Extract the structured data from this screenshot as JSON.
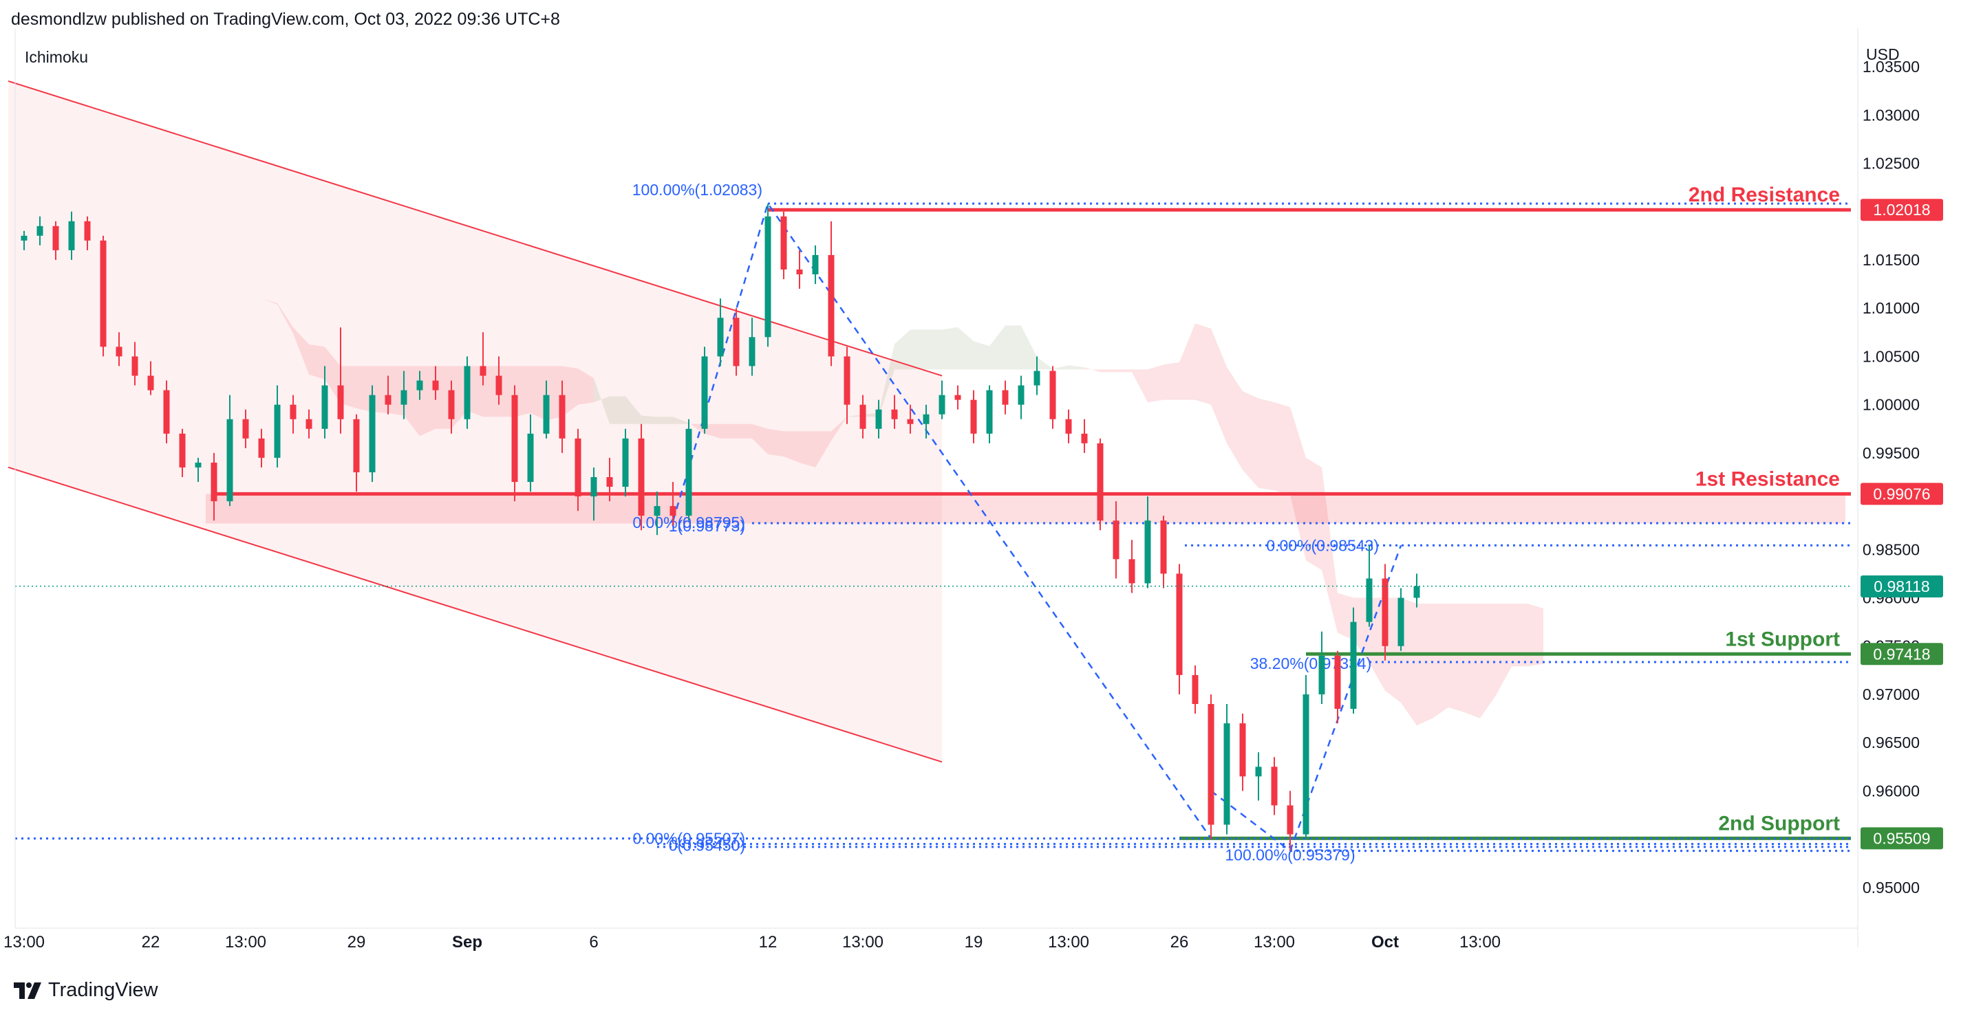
{
  "header": {
    "publisher_line": "desmondlzw published on TradingView.com, Oct 03, 2022 09:36 UTC+8",
    "indicator": "Ichimoku",
    "currency": "USD",
    "brand": "TradingView"
  },
  "colors": {
    "resistance": "#f23645",
    "support": "#388e3c",
    "bull": "#089981",
    "bear": "#f23645",
    "fib": "#2962ff",
    "channel": "#f23645"
  },
  "chart_data": {
    "type": "candlestick",
    "y_axis": {
      "range": [
        0.9465,
        1.0375
      ],
      "ticks": [
        "1.03500",
        "1.03000",
        "1.02500",
        "1.01500",
        "1.01000",
        "1.00500",
        "1.00000",
        "0.99500",
        "0.98500",
        "0.98000",
        "0.97500",
        "0.97000",
        "0.96500",
        "0.96000",
        "0.95000"
      ]
    },
    "x_axis": {
      "ticks": [
        {
          "label": "13:00",
          "bar": 0
        },
        {
          "label": "22",
          "bar": 8
        },
        {
          "label": "13:00",
          "bar": 14
        },
        {
          "label": "29",
          "bar": 21
        },
        {
          "label": "Sep",
          "bar": 28
        },
        {
          "label": "6",
          "bar": 36
        },
        {
          "label": "12",
          "bar": 47
        },
        {
          "label": "13:00",
          "bar": 53
        },
        {
          "label": "19",
          "bar": 60
        },
        {
          "label": "13:00",
          "bar": 66
        },
        {
          "label": "26",
          "bar": 73
        },
        {
          "label": "13:00",
          "bar": 79
        },
        {
          "label": "Oct",
          "bar": 86
        },
        {
          "label": "13:00",
          "bar": 92
        }
      ]
    },
    "price_labels": [
      {
        "text": "1.02018",
        "value": 1.02018,
        "color": "#f23645"
      },
      {
        "text": "0.99076",
        "value": 0.99076,
        "color": "#f23645"
      },
      {
        "text": "0.98118",
        "value": 0.98118,
        "color": "#089981"
      },
      {
        "text": "0.97418",
        "value": 0.97418,
        "color": "#388e3c"
      },
      {
        "text": "0.95509",
        "value": 0.95509,
        "color": "#388e3c"
      }
    ],
    "levels": [
      {
        "label": "2nd Resistance",
        "value": 1.02018,
        "kind": "resistance",
        "from_bar": 47
      },
      {
        "label": "1st Resistance",
        "value": 0.99076,
        "kind": "resistance",
        "from_bar": 12
      },
      {
        "label": "1st Support",
        "value": 0.97418,
        "kind": "support",
        "from_bar": 81
      },
      {
        "label": "2nd Support",
        "value": 0.95509,
        "kind": "support",
        "from_bar": 73
      }
    ],
    "fib_labels": [
      {
        "text": "100.00%(1.02083)",
        "value": 1.02083,
        "bar": 48
      },
      {
        "text": "0.00%(0.98795)",
        "value": 0.98795,
        "bar": 41
      },
      {
        "text": "1(0.98773)",
        "value": 0.98773,
        "bar": 41
      },
      {
        "text": "0.00%(0.98543)",
        "value": 0.98543,
        "bar": 86
      },
      {
        "text": "38.20%(0.97334)",
        "value": 0.97334,
        "bar": 86
      },
      {
        "text": "0.00%(0.95507)",
        "value": 0.95507,
        "bar": 41
      },
      {
        "text": "0(0.95450)",
        "value": 0.9545,
        "bar": 41
      },
      {
        "text": "100.00%(0.95379)",
        "value": 0.95379,
        "bar": 80
      }
    ],
    "candles": [
      {
        "o": 1.017,
        "h": 1.018,
        "l": 1.016,
        "c": 1.0175
      },
      {
        "o": 1.0175,
        "h": 1.0195,
        "l": 1.0165,
        "c": 1.0185
      },
      {
        "o": 1.0185,
        "h": 1.019,
        "l": 1.015,
        "c": 1.016
      },
      {
        "o": 1.016,
        "h": 1.02,
        "l": 1.015,
        "c": 1.019
      },
      {
        "o": 1.019,
        "h": 1.0195,
        "l": 1.016,
        "c": 1.017
      },
      {
        "o": 1.017,
        "h": 1.0175,
        "l": 1.005,
        "c": 1.006
      },
      {
        "o": 1.006,
        "h": 1.0075,
        "l": 1.004,
        "c": 1.005
      },
      {
        "o": 1.005,
        "h": 1.0065,
        "l": 1.002,
        "c": 1.003
      },
      {
        "o": 1.003,
        "h": 1.0045,
        "l": 1.001,
        "c": 1.0015
      },
      {
        "o": 1.0015,
        "h": 1.0025,
        "l": 0.996,
        "c": 0.997
      },
      {
        "o": 0.997,
        "h": 0.9975,
        "l": 0.9925,
        "c": 0.9935
      },
      {
        "o": 0.9935,
        "h": 0.9945,
        "l": 0.992,
        "c": 0.994
      },
      {
        "o": 0.994,
        "h": 0.995,
        "l": 0.988,
        "c": 0.99
      },
      {
        "o": 0.99,
        "h": 1.001,
        "l": 0.9895,
        "c": 0.9985
      },
      {
        "o": 0.9985,
        "h": 0.9995,
        "l": 0.9955,
        "c": 0.9965
      },
      {
        "o": 0.9965,
        "h": 0.9975,
        "l": 0.9935,
        "c": 0.9945
      },
      {
        "o": 0.9945,
        "h": 1.002,
        "l": 0.9935,
        "c": 1.0
      },
      {
        "o": 1.0,
        "h": 1.001,
        "l": 0.997,
        "c": 0.9985
      },
      {
        "o": 0.9985,
        "h": 0.9995,
        "l": 0.9965,
        "c": 0.9975
      },
      {
        "o": 0.9975,
        "h": 1.004,
        "l": 0.9965,
        "c": 1.002
      },
      {
        "o": 1.002,
        "h": 1.008,
        "l": 0.997,
        "c": 0.9985
      },
      {
        "o": 0.9985,
        "h": 0.999,
        "l": 0.991,
        "c": 0.993
      },
      {
        "o": 0.993,
        "h": 1.002,
        "l": 0.992,
        "c": 1.001
      },
      {
        "o": 1.001,
        "h": 1.003,
        "l": 0.999,
        "c": 1.0
      },
      {
        "o": 1.0,
        "h": 1.0035,
        "l": 0.9985,
        "c": 1.0015
      },
      {
        "o": 1.0015,
        "h": 1.0035,
        "l": 1.0005,
        "c": 1.0025
      },
      {
        "o": 1.0025,
        "h": 1.004,
        "l": 1.0005,
        "c": 1.0015
      },
      {
        "o": 1.0015,
        "h": 1.0025,
        "l": 0.997,
        "c": 0.9985
      },
      {
        "o": 0.9985,
        "h": 1.005,
        "l": 0.9975,
        "c": 1.004
      },
      {
        "o": 1.004,
        "h": 1.0075,
        "l": 1.002,
        "c": 1.003
      },
      {
        "o": 1.003,
        "h": 1.005,
        "l": 1.0,
        "c": 1.001
      },
      {
        "o": 1.001,
        "h": 1.002,
        "l": 0.99,
        "c": 0.992
      },
      {
        "o": 0.992,
        "h": 0.999,
        "l": 0.991,
        "c": 0.997
      },
      {
        "o": 0.997,
        "h": 1.0025,
        "l": 0.9965,
        "c": 1.001
      },
      {
        "o": 1.001,
        "h": 1.0025,
        "l": 0.995,
        "c": 0.9965
      },
      {
        "o": 0.9965,
        "h": 0.9975,
        "l": 0.989,
        "c": 0.9905
      },
      {
        "o": 0.9905,
        "h": 0.9935,
        "l": 0.988,
        "c": 0.9925
      },
      {
        "o": 0.9925,
        "h": 0.9945,
        "l": 0.99,
        "c": 0.9915
      },
      {
        "o": 0.9915,
        "h": 0.9975,
        "l": 0.9905,
        "c": 0.9965
      },
      {
        "o": 0.9965,
        "h": 0.998,
        "l": 0.987,
        "c": 0.9885
      },
      {
        "o": 0.9885,
        "h": 0.991,
        "l": 0.9865,
        "c": 0.9895
      },
      {
        "o": 0.9895,
        "h": 0.992,
        "l": 0.9875,
        "c": 0.9885
      },
      {
        "o": 0.9885,
        "h": 0.9985,
        "l": 0.988,
        "c": 0.9975
      },
      {
        "o": 0.9975,
        "h": 1.006,
        "l": 0.997,
        "c": 1.005
      },
      {
        "o": 1.005,
        "h": 1.011,
        "l": 1.004,
        "c": 1.009
      },
      {
        "o": 1.009,
        "h": 1.01,
        "l": 1.003,
        "c": 1.004
      },
      {
        "o": 1.004,
        "h": 1.009,
        "l": 1.003,
        "c": 1.007
      },
      {
        "o": 1.007,
        "h": 1.0208,
        "l": 1.006,
        "c": 1.0195
      },
      {
        "o": 1.0195,
        "h": 1.02,
        "l": 1.013,
        "c": 1.014
      },
      {
        "o": 1.014,
        "h": 1.016,
        "l": 1.012,
        "c": 1.0135
      },
      {
        "o": 1.0135,
        "h": 1.0165,
        "l": 1.0125,
        "c": 1.0155
      },
      {
        "o": 1.0155,
        "h": 1.019,
        "l": 1.004,
        "c": 1.005
      },
      {
        "o": 1.005,
        "h": 1.006,
        "l": 0.998,
        "c": 1.0
      },
      {
        "o": 1.0,
        "h": 1.001,
        "l": 0.9965,
        "c": 0.9975
      },
      {
        "o": 0.9975,
        "h": 1.0005,
        "l": 0.9965,
        "c": 0.9995
      },
      {
        "o": 0.9995,
        "h": 1.001,
        "l": 0.9975,
        "c": 0.9985
      },
      {
        "o": 0.9985,
        "h": 1.0,
        "l": 0.997,
        "c": 0.998
      },
      {
        "o": 0.998,
        "h": 1.0,
        "l": 0.9965,
        "c": 0.999
      },
      {
        "o": 0.999,
        "h": 1.0025,
        "l": 0.9985,
        "c": 1.001
      },
      {
        "o": 1.001,
        "h": 1.002,
        "l": 0.9995,
        "c": 1.0005
      },
      {
        "o": 1.0005,
        "h": 1.0015,
        "l": 0.996,
        "c": 0.997
      },
      {
        "o": 0.997,
        "h": 1.002,
        "l": 0.996,
        "c": 1.0015
      },
      {
        "o": 1.0015,
        "h": 1.0025,
        "l": 0.999,
        "c": 1.0
      },
      {
        "o": 1.0,
        "h": 1.003,
        "l": 0.9985,
        "c": 1.002
      },
      {
        "o": 1.002,
        "h": 1.005,
        "l": 1.001,
        "c": 1.0035
      },
      {
        "o": 1.0035,
        "h": 1.004,
        "l": 0.9975,
        "c": 0.9985
      },
      {
        "o": 0.9985,
        "h": 0.9995,
        "l": 0.996,
        "c": 0.997
      },
      {
        "o": 0.997,
        "h": 0.9985,
        "l": 0.995,
        "c": 0.996
      },
      {
        "o": 0.996,
        "h": 0.9965,
        "l": 0.987,
        "c": 0.988
      },
      {
        "o": 0.988,
        "h": 0.99,
        "l": 0.982,
        "c": 0.984
      },
      {
        "o": 0.984,
        "h": 0.986,
        "l": 0.9805,
        "c": 0.9815
      },
      {
        "o": 0.9815,
        "h": 0.9905,
        "l": 0.981,
        "c": 0.988
      },
      {
        "o": 0.988,
        "h": 0.9885,
        "l": 0.981,
        "c": 0.9825
      },
      {
        "o": 0.9825,
        "h": 0.9835,
        "l": 0.97,
        "c": 0.972
      },
      {
        "o": 0.972,
        "h": 0.973,
        "l": 0.968,
        "c": 0.969
      },
      {
        "o": 0.969,
        "h": 0.97,
        "l": 0.955,
        "c": 0.9565
      },
      {
        "o": 0.9565,
        "h": 0.969,
        "l": 0.9555,
        "c": 0.967
      },
      {
        "o": 0.967,
        "h": 0.968,
        "l": 0.96,
        "c": 0.9615
      },
      {
        "o": 0.9615,
        "h": 0.964,
        "l": 0.959,
        "c": 0.9625
      },
      {
        "o": 0.9625,
        "h": 0.9635,
        "l": 0.9575,
        "c": 0.9585
      },
      {
        "o": 0.9585,
        "h": 0.96,
        "l": 0.9538,
        "c": 0.9555
      },
      {
        "o": 0.9555,
        "h": 0.972,
        "l": 0.955,
        "c": 0.97
      },
      {
        "o": 0.97,
        "h": 0.9765,
        "l": 0.969,
        "c": 0.974
      },
      {
        "o": 0.974,
        "h": 0.9745,
        "l": 0.967,
        "c": 0.9685
      },
      {
        "o": 0.9685,
        "h": 0.979,
        "l": 0.968,
        "c": 0.9775
      },
      {
        "o": 0.9775,
        "h": 0.9854,
        "l": 0.977,
        "c": 0.982
      },
      {
        "o": 0.982,
        "h": 0.9835,
        "l": 0.9735,
        "c": 0.975
      },
      {
        "o": 0.975,
        "h": 0.981,
        "l": 0.9745,
        "c": 0.98
      },
      {
        "o": 0.98,
        "h": 0.9825,
        "l": 0.979,
        "c": 0.9812
      }
    ]
  }
}
